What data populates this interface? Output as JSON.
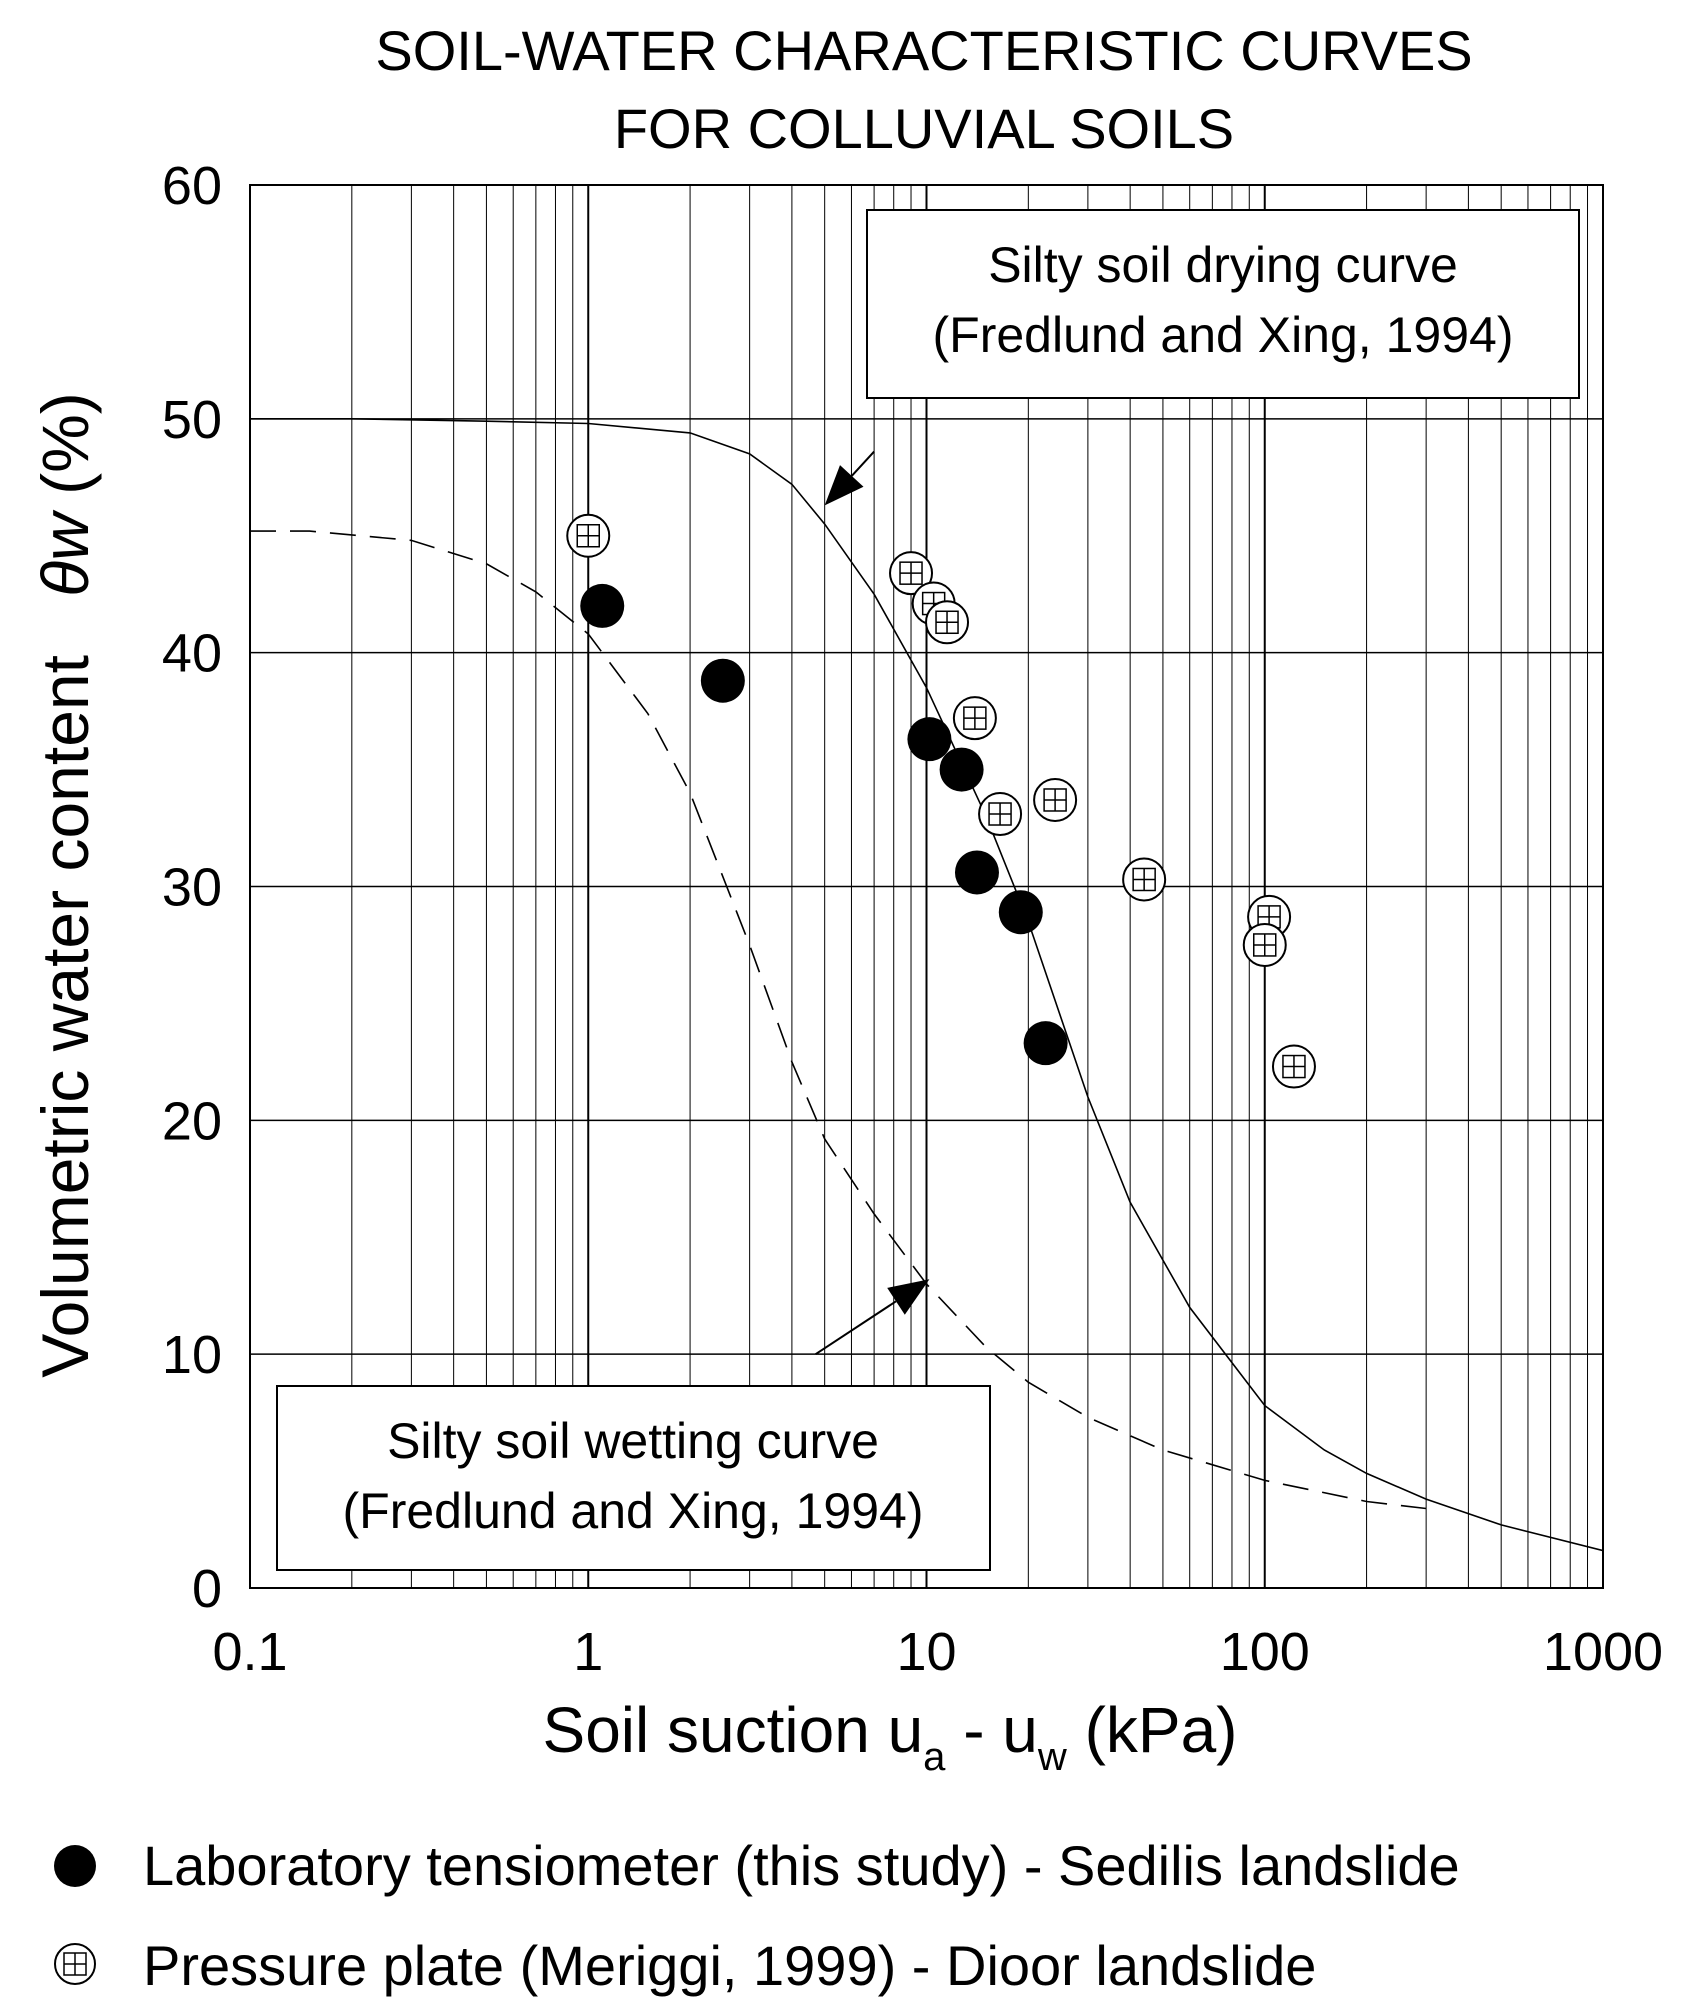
{
  "chart_data": {
    "type": "scatter",
    "title_lines": [
      "SOIL-WATER CHARACTERISTIC CURVES",
      "FOR COLLUVIAL SOILS"
    ],
    "xlabel": {
      "main": "Soil suction u",
      "sub_a": "a",
      "mid": " - u",
      "sub_w": "w",
      "end": " (kPa)"
    },
    "ylabel": {
      "main": "Volumetric water content",
      "symbol": "θw",
      "unit": " (%)"
    },
    "x_scale": "log",
    "xlim": [
      0.1,
      1000
    ],
    "ylim": [
      0,
      60
    ],
    "x_ticks": [
      {
        "value": 0.1,
        "label": "0.1"
      },
      {
        "value": 1,
        "label": "1"
      },
      {
        "value": 10,
        "label": "10"
      },
      {
        "value": 100,
        "label": "100"
      },
      {
        "value": 1000,
        "label": "1000"
      }
    ],
    "y_ticks": [
      {
        "value": 0,
        "label": "0"
      },
      {
        "value": 10,
        "label": "10"
      },
      {
        "value": 20,
        "label": "20"
      },
      {
        "value": 30,
        "label": "30"
      },
      {
        "value": 40,
        "label": "40"
      },
      {
        "value": 50,
        "label": "50"
      },
      {
        "value": 60,
        "label": "60"
      }
    ],
    "grid": true,
    "curves": [
      {
        "name": "drying",
        "style": "solid",
        "label_lines": [
          "Silty soil drying curve",
          "(Fredlund and Xing, 1994)"
        ],
        "points": [
          [
            0.1,
            50
          ],
          [
            0.2,
            50
          ],
          [
            0.5,
            49.9
          ],
          [
            1,
            49.8
          ],
          [
            2,
            49.4
          ],
          [
            3,
            48.5
          ],
          [
            4,
            47.2
          ],
          [
            5,
            45.5
          ],
          [
            7,
            42.5
          ],
          [
            10,
            38.5
          ],
          [
            15,
            33
          ],
          [
            20,
            28.5
          ],
          [
            30,
            21
          ],
          [
            40,
            16.5
          ],
          [
            60,
            12
          ],
          [
            100,
            7.8
          ],
          [
            150,
            5.9
          ],
          [
            200,
            4.9
          ],
          [
            300,
            3.8
          ],
          [
            500,
            2.7
          ],
          [
            1000,
            1.6
          ]
        ],
        "arrow_from": [
          7,
          48.6
        ],
        "arrow_to": [
          5,
          46.3
        ]
      },
      {
        "name": "wetting",
        "style": "dashed",
        "label_lines": [
          "Silty soil wetting curve",
          "(Fredlund and Xing, 1994)"
        ],
        "points": [
          [
            0.1,
            45.2
          ],
          [
            0.15,
            45.2
          ],
          [
            0.3,
            44.8
          ],
          [
            0.5,
            43.8
          ],
          [
            0.7,
            42.6
          ],
          [
            1,
            40.8
          ],
          [
            1.5,
            37.4
          ],
          [
            2,
            34
          ],
          [
            3,
            27.5
          ],
          [
            4,
            22.5
          ],
          [
            5,
            19.2
          ],
          [
            7,
            16
          ],
          [
            10,
            13
          ],
          [
            15,
            10.3
          ],
          [
            20,
            8.8
          ],
          [
            30,
            7.3
          ],
          [
            50,
            5.9
          ],
          [
            100,
            4.6
          ],
          [
            200,
            3.7
          ],
          [
            300,
            3.4
          ]
        ],
        "arrow_from": [
          4.7,
          10
        ],
        "arrow_to": [
          10.2,
          13.2
        ]
      }
    ],
    "series": [
      {
        "name": "Laboratory tensiometer (this study) - Sedilis landslide",
        "marker": "filled-circle",
        "points": [
          [
            1.1,
            42
          ],
          [
            2.5,
            38.8
          ],
          [
            10.2,
            36.3
          ],
          [
            12.7,
            35
          ],
          [
            14.1,
            30.6
          ],
          [
            19,
            28.9
          ],
          [
            22.5,
            23.3
          ]
        ]
      },
      {
        "name": "Pressure plate (Meriggi, 1999) - Dioor landslide",
        "marker": "open-circle-grid",
        "points": [
          [
            1,
            45
          ],
          [
            9,
            43.4
          ],
          [
            10.5,
            42.1
          ],
          [
            11.5,
            41.3
          ],
          [
            13.9,
            37.2
          ],
          [
            16.5,
            33.1
          ],
          [
            24,
            33.7
          ],
          [
            44,
            30.3
          ],
          [
            103,
            28.7
          ],
          [
            100,
            27.5
          ],
          [
            122,
            22.3
          ]
        ]
      }
    ]
  }
}
